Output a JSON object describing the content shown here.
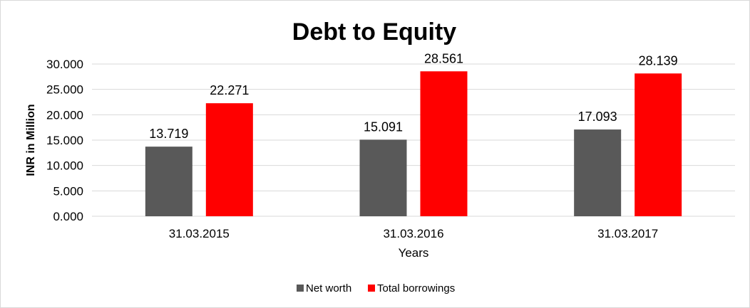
{
  "chart_data": {
    "type": "bar",
    "title": "Debt to Equity",
    "xlabel": "Years",
    "ylabel": "INR in Million",
    "categories": [
      "31.03.2015",
      "31.03.2016",
      "31.03.2017"
    ],
    "series": [
      {
        "name": "Net worth",
        "color": "#595959",
        "values": [
          13.719,
          15.091,
          17.093
        ],
        "labels": [
          "13.719",
          "15.091",
          "17.093"
        ]
      },
      {
        "name": "Total borrowings",
        "color": "#ff0000",
        "values": [
          22.271,
          28.561,
          28.139
        ],
        "labels": [
          "22.271",
          "28.561",
          "28.139"
        ]
      }
    ],
    "ylim": [
      0,
      30
    ],
    "yticks": [
      "0.000",
      "5.000",
      "10.000",
      "15.000",
      "20.000",
      "25.000",
      "30.000"
    ],
    "grid": true,
    "gridColor": "#d9d9d9",
    "legend": "bottom"
  }
}
